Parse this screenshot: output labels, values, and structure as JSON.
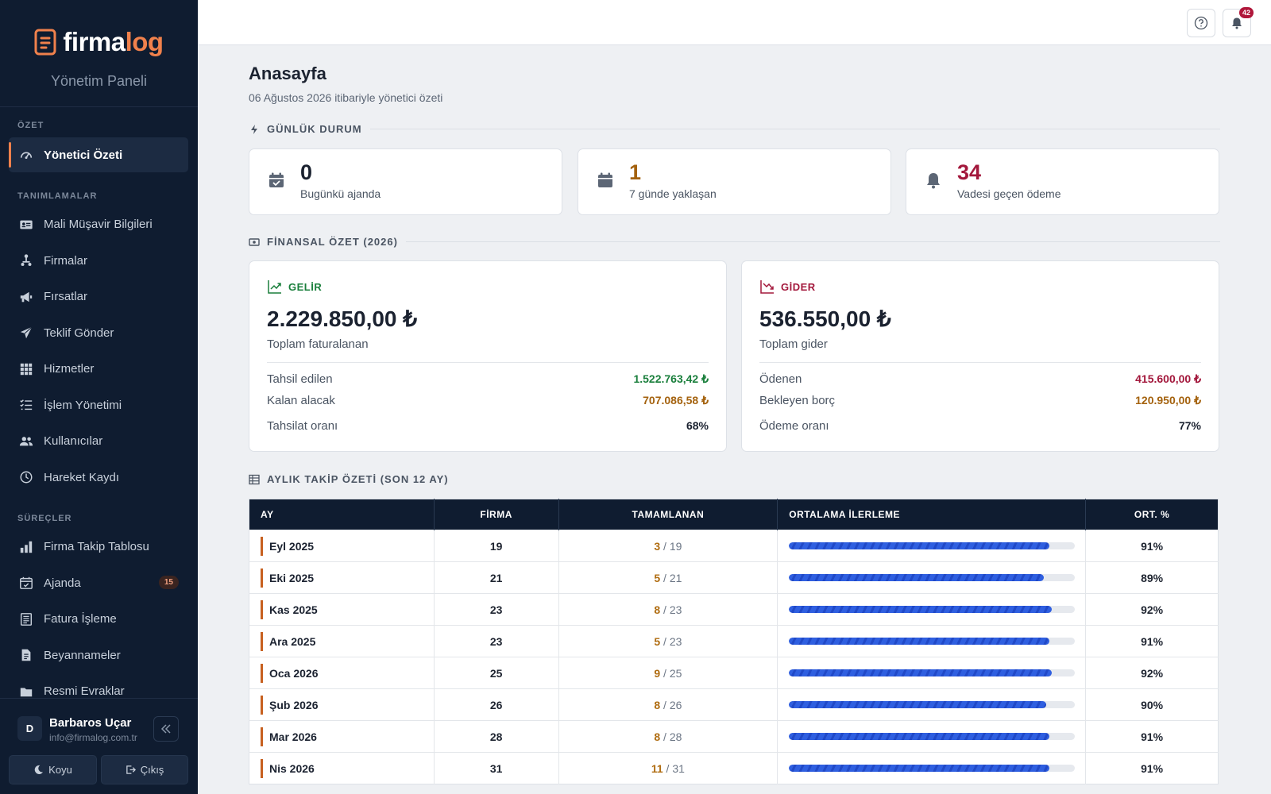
{
  "brand": {
    "name_part1": "firma",
    "name_part2": "log",
    "subtitle": "Yönetim Paneli"
  },
  "sidebar": {
    "sections": [
      {
        "label": "ÖZET",
        "items": [
          {
            "label": "Yönetici Özeti",
            "icon": "gauge-icon",
            "active": true
          }
        ]
      },
      {
        "label": "TANIMLAMALAR",
        "items": [
          {
            "label": "Mali Müşavir Bilgileri",
            "icon": "id-card-icon"
          },
          {
            "label": "Firmalar",
            "icon": "sitemap-icon"
          },
          {
            "label": "Fırsatlar",
            "icon": "megaphone-icon"
          },
          {
            "label": "Teklif Gönder",
            "icon": "paper-plane-icon"
          },
          {
            "label": "Hizmetler",
            "icon": "grid-icon"
          },
          {
            "label": "İşlem Yönetimi",
            "icon": "list-check-icon"
          },
          {
            "label": "Kullanıcılar",
            "icon": "users-icon"
          },
          {
            "label": "Hareket Kaydı",
            "icon": "clock-history-icon"
          }
        ]
      },
      {
        "label": "SÜREÇLER",
        "items": [
          {
            "label": "Firma Takip Tablosu",
            "icon": "bar-chart-icon"
          },
          {
            "label": "Ajanda",
            "icon": "calendar-check-icon",
            "badge": "15"
          },
          {
            "label": "Fatura İşleme",
            "icon": "receipt-icon"
          },
          {
            "label": "Beyannameler",
            "icon": "file-text-icon"
          },
          {
            "label": "Resmi Evraklar",
            "icon": "folder-icon"
          }
        ]
      }
    ],
    "user": {
      "initial": "D",
      "name": "Barbaros Uçar",
      "email": "info@firmalog.com.tr"
    },
    "theme_button": "Koyu",
    "logout_button": "Çıkış"
  },
  "topbar": {
    "notification_count": "42"
  },
  "page": {
    "title": "Anasayfa",
    "subtitle": "06 Ağustos 2026 itibariyle yönetici özeti"
  },
  "daily": {
    "heading": "GÜNLÜK DURUM",
    "cards": [
      {
        "value": "0",
        "label": "Bugünkü ajanda",
        "color": "#1b2230",
        "icon": "calendar-check-icon"
      },
      {
        "value": "1",
        "label": "7 günde yaklaşan",
        "color": "#a4620e",
        "icon": "calendar-icon"
      },
      {
        "value": "34",
        "label": "Vadesi geçen ödeme",
        "color": "#a3183c",
        "icon": "bell-icon"
      }
    ]
  },
  "finance": {
    "heading": "FİNANSAL ÖZET (2026)",
    "income": {
      "tag": "GELİR",
      "total": "2.229.850,00 ₺",
      "sub": "Toplam faturalanan",
      "rows": [
        {
          "label": "Tahsil edilen",
          "value": "1.522.763,42 ₺",
          "color": "#1a7f3c"
        },
        {
          "label": "Kalan alacak",
          "value": "707.086,58 ₺",
          "color": "#a4620e"
        },
        {
          "label": "Tahsilat oranı",
          "value": "68%",
          "color": "#1b2230"
        }
      ]
    },
    "expense": {
      "tag": "GİDER",
      "total": "536.550,00 ₺",
      "sub": "Toplam gider",
      "rows": [
        {
          "label": "Ödenen",
          "value": "415.600,00 ₺",
          "color": "#a3183c"
        },
        {
          "label": "Bekleyen borç",
          "value": "120.950,00 ₺",
          "color": "#a4620e"
        },
        {
          "label": "Ödeme oranı",
          "value": "77%",
          "color": "#1b2230"
        }
      ]
    }
  },
  "monthly": {
    "heading": "AYLIK TAKİP ÖZETİ (SON 12 AY)",
    "columns": [
      "AY",
      "FİRMA",
      "TAMAMLANAN",
      "ORTALAMA İLERLEME",
      "ORT. %"
    ],
    "rows": [
      {
        "month": "Eyl 2025",
        "firma": "19",
        "done": "3",
        "total": "/ 19",
        "progress": 0.91,
        "pct": "91%"
      },
      {
        "month": "Eki 2025",
        "firma": "21",
        "done": "5",
        "total": "/ 21",
        "progress": 0.89,
        "pct": "89%"
      },
      {
        "month": "Kas 2025",
        "firma": "23",
        "done": "8",
        "total": "/ 23",
        "progress": 0.92,
        "pct": "92%"
      },
      {
        "month": "Ara 2025",
        "firma": "23",
        "done": "5",
        "total": "/ 23",
        "progress": 0.91,
        "pct": "91%"
      },
      {
        "month": "Oca 2026",
        "firma": "25",
        "done": "9",
        "total": "/ 25",
        "progress": 0.92,
        "pct": "92%"
      },
      {
        "month": "Şub 2026",
        "firma": "26",
        "done": "8",
        "total": "/ 26",
        "progress": 0.9,
        "pct": "90%"
      },
      {
        "month": "Mar 2026",
        "firma": "28",
        "done": "8",
        "total": "/ 28",
        "progress": 0.91,
        "pct": "91%"
      },
      {
        "month": "Nis 2026",
        "firma": "31",
        "done": "11",
        "total": "/ 31",
        "progress": 0.91,
        "pct": "91%"
      }
    ]
  }
}
